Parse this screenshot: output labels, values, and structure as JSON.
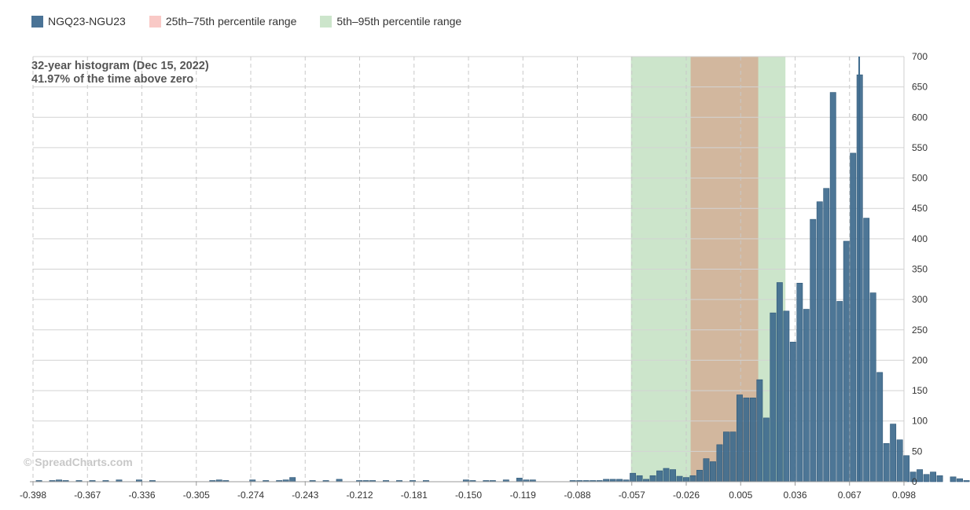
{
  "legend": [
    {
      "label": "NGQ23-NGU23",
      "color": "#4a7396"
    },
    {
      "label": "25th–75th percentile range",
      "color": "#f9c9c6"
    },
    {
      "label": "5th–95th percentile range",
      "color": "#cce5cb"
    }
  ],
  "annotation": {
    "line1": "32-year histogram (Dec 15, 2022)",
    "line2": "41.97% of the time above zero"
  },
  "watermark": "© SpreadCharts.com",
  "colors": {
    "bar": "#3e6a8d",
    "bar_stroke": "#2f5878",
    "p25_75": "#d2b79e",
    "p5_95": "#cce5cb",
    "current_line": "#3e6a8d",
    "grid": "#d3d3d3"
  },
  "chart_data": {
    "type": "bar",
    "title": "",
    "xlabel": "",
    "ylabel": "",
    "ylim": [
      0,
      700
    ],
    "y_ticks": [
      0,
      50,
      100,
      150,
      200,
      250,
      300,
      350,
      400,
      450,
      500,
      550,
      600,
      650,
      700
    ],
    "x_ticks": [
      "-0.398",
      "-0.367",
      "-0.336",
      "-0.305",
      "-0.274",
      "-0.243",
      "-0.212",
      "-0.181",
      "-0.150",
      "-0.119",
      "-0.088",
      "-0.057",
      "-0.026",
      "0.005",
      "0.036",
      "0.067",
      "0.098"
    ],
    "x_range": [
      -0.398,
      0.098
    ],
    "bin_width": 0.0038,
    "x_start": -0.3965,
    "values": [
      2,
      0,
      2,
      3,
      2,
      0,
      2,
      0,
      2,
      0,
      2,
      0,
      3,
      0,
      0,
      3,
      0,
      2,
      0,
      0,
      0,
      0,
      0,
      0,
      0,
      0,
      2,
      3,
      2,
      0,
      0,
      0,
      3,
      0,
      2,
      0,
      2,
      3,
      7,
      0,
      0,
      2,
      0,
      2,
      0,
      4,
      0,
      0,
      2,
      2,
      2,
      0,
      2,
      0,
      2,
      0,
      2,
      0,
      2,
      0,
      0,
      0,
      0,
      0,
      3,
      2,
      0,
      2,
      2,
      0,
      3,
      0,
      6,
      3,
      3,
      0,
      0,
      0,
      0,
      0,
      2,
      2,
      2,
      2,
      2,
      4,
      4,
      4,
      3,
      14,
      10,
      4,
      10,
      18,
      22,
      20,
      9,
      7,
      10,
      19,
      38,
      33,
      61,
      82,
      82,
      143,
      138,
      138,
      168,
      105,
      278,
      328,
      281,
      230,
      327,
      284,
      432,
      461,
      483,
      641,
      297,
      396,
      541,
      670,
      434,
      311,
      180,
      63,
      95,
      69,
      43,
      16,
      20,
      12,
      16,
      10,
      0,
      8,
      5,
      2,
      2,
      2,
      2,
      2
    ],
    "percentile_5_95": [
      -0.0575,
      0.0305
    ],
    "percentile_25_75": [
      -0.0235,
      0.015
    ],
    "current_value": 0.0725
  }
}
